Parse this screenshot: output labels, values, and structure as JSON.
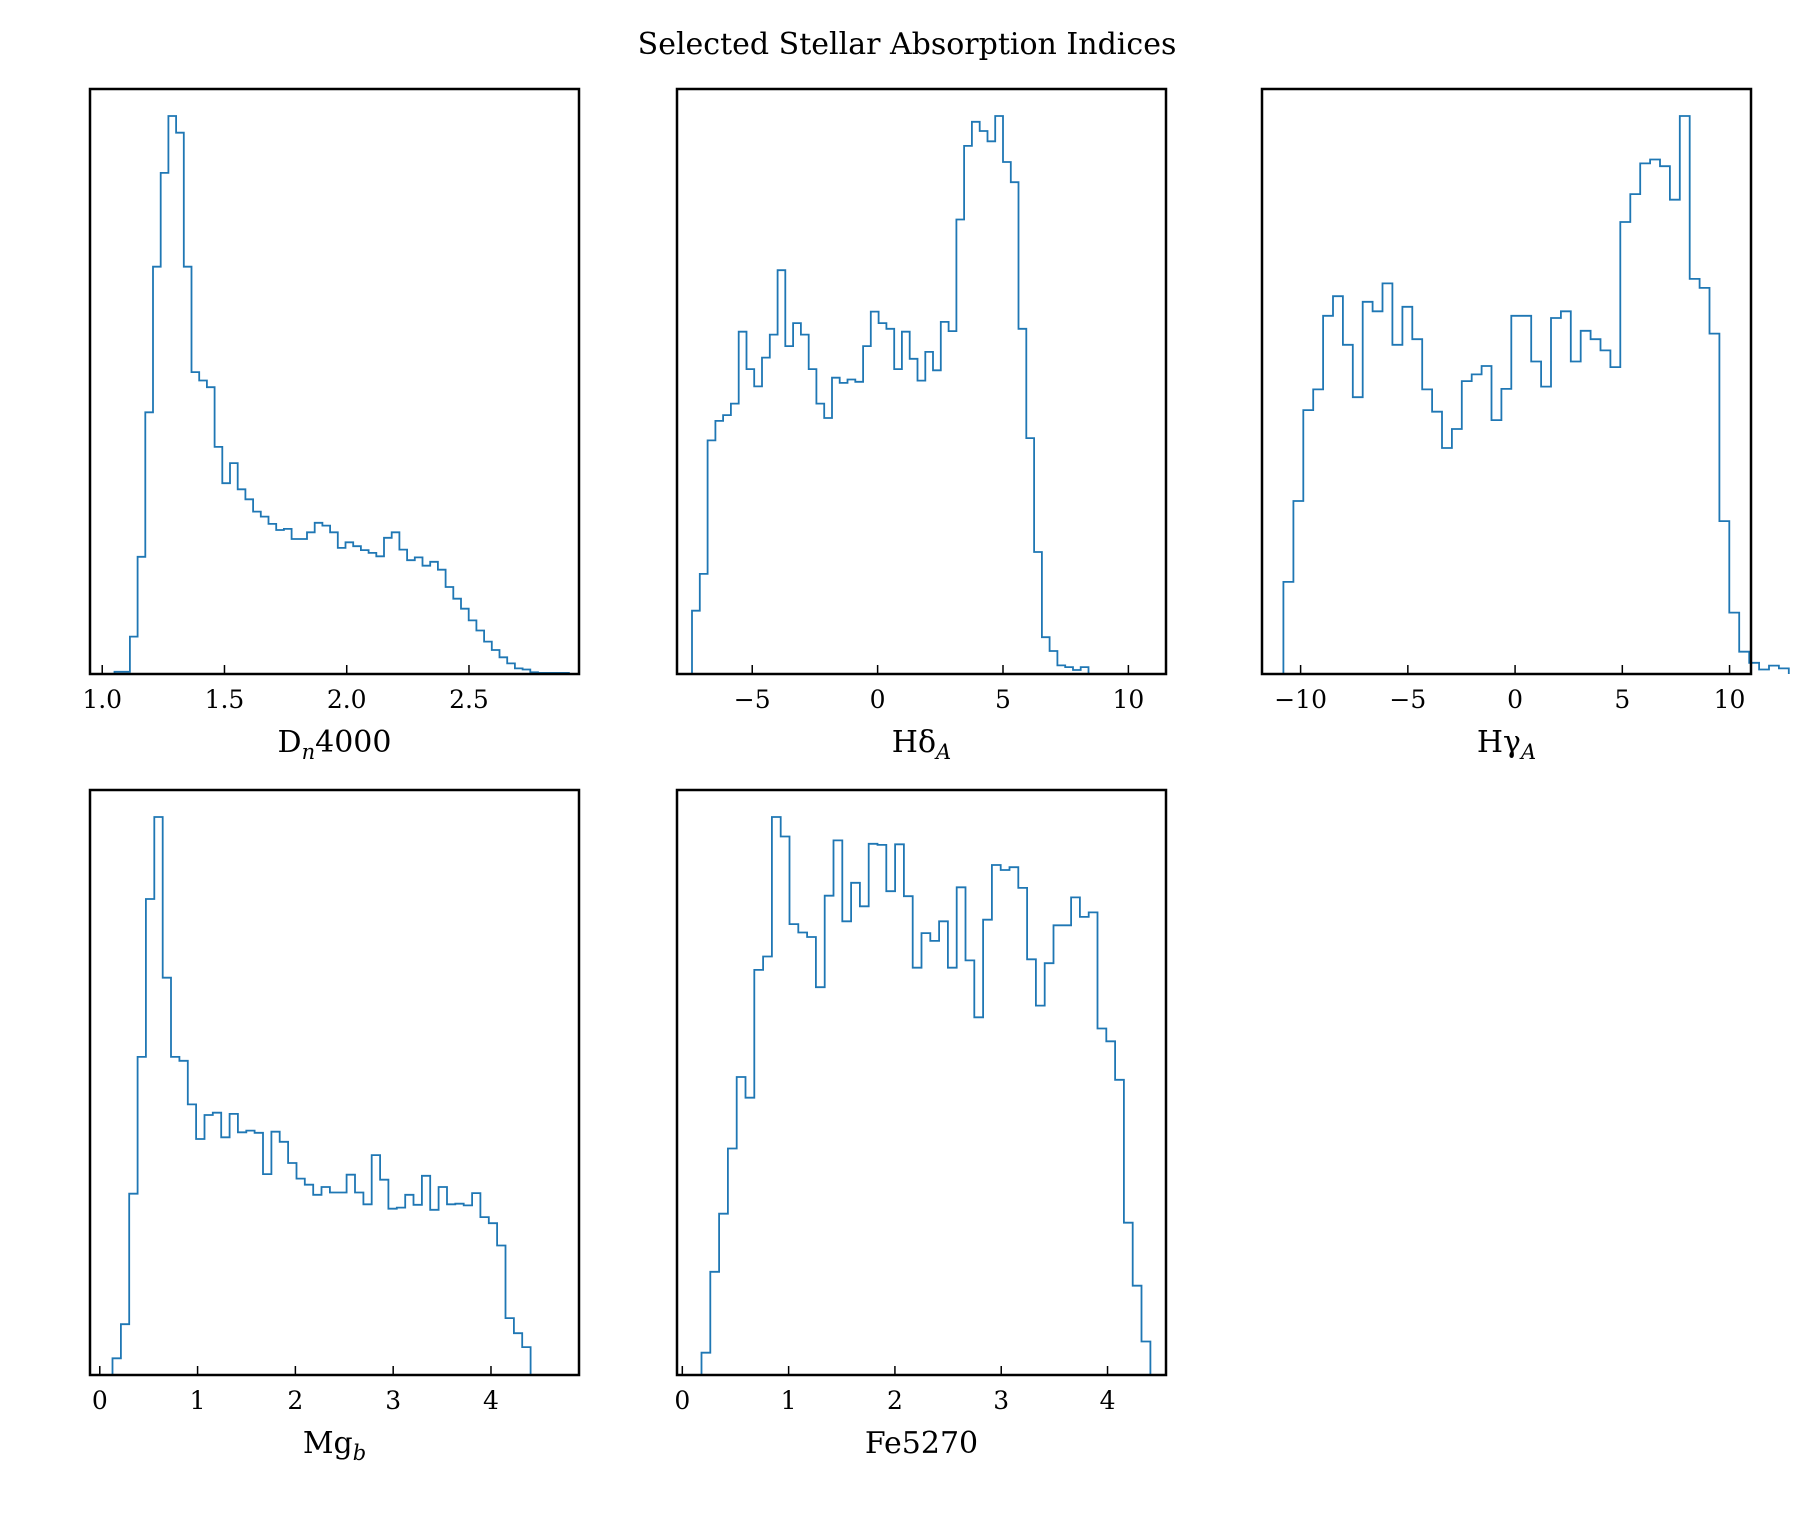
{
  "figure": {
    "title": "Selected Stellar Absorption Indices"
  },
  "colors": {
    "histogram": "#1f77b4",
    "frame": "#000000"
  },
  "chart_data": [
    {
      "type": "histogram",
      "id": "dn4000",
      "xlabel": "D",
      "xlabel_sub": "n",
      "xlabel_tail": "4000",
      "xlim": [
        0.95,
        2.95
      ],
      "xticks": [
        1.0,
        1.5,
        2.0,
        2.5
      ],
      "xtick_labels": [
        "1.0",
        "1.5",
        "2.0",
        "2.5"
      ],
      "bin_start": 1.05,
      "bin_width": 0.0315,
      "counts": [
        0.004,
        0.004,
        0.067,
        0.21,
        0.469,
        0.73,
        0.898,
        1.0,
        0.97,
        0.73,
        0.541,
        0.526,
        0.514,
        0.407,
        0.342,
        0.378,
        0.331,
        0.313,
        0.291,
        0.282,
        0.269,
        0.258,
        0.26,
        0.242,
        0.242,
        0.254,
        0.271,
        0.266,
        0.254,
        0.226,
        0.236,
        0.229,
        0.222,
        0.217,
        0.211,
        0.244,
        0.254,
        0.223,
        0.204,
        0.209,
        0.194,
        0.201,
        0.187,
        0.156,
        0.135,
        0.117,
        0.096,
        0.078,
        0.058,
        0.043,
        0.03,
        0.019,
        0.01,
        0.008,
        0.003,
        0.002,
        0.002,
        0.002,
        0.002
      ],
      "grid": false,
      "legend": "none"
    },
    {
      "type": "histogram",
      "id": "hdelta",
      "xlabel": "Hδ",
      "xlabel_sub": "A",
      "xlabel_tail": "",
      "xlim": [
        -8.0,
        11.5
      ],
      "xticks": [
        -5,
        0,
        5,
        10
      ],
      "xtick_labels": [
        "−5",
        "0",
        "5",
        "10"
      ],
      "bin_start": -7.4,
      "bin_width": 0.31,
      "counts": [
        0.11,
        0.174,
        0.406,
        0.44,
        0.45,
        0.47,
        0.595,
        0.53,
        0.5,
        0.55,
        0.59,
        0.702,
        0.57,
        0.61,
        0.59,
        0.53,
        0.47,
        0.445,
        0.515,
        0.506,
        0.512,
        0.508,
        0.57,
        0.63,
        0.61,
        0.6,
        0.53,
        0.595,
        0.548,
        0.51,
        0.56,
        0.528,
        0.612,
        0.596,
        0.79,
        0.918,
        0.96,
        0.944,
        0.926,
        0.97,
        0.89,
        0.855,
        0.6,
        0.41,
        0.212,
        0.064,
        0.04,
        0.015,
        0.012,
        0.007,
        0.012
      ],
      "grid": false,
      "legend": "none"
    },
    {
      "type": "histogram",
      "id": "hgamma",
      "xlabel": "Hγ",
      "xlabel_sub": "A",
      "xlabel_tail": "",
      "xlim": [
        -11.8,
        11.0
      ],
      "xticks": [
        -10,
        -5,
        0,
        5,
        10
      ],
      "xtick_labels": [
        "−10",
        "−5",
        "0",
        "5",
        "10"
      ],
      "bin_start": -10.8,
      "bin_width": 0.462,
      "counts": [
        0.165,
        0.31,
        0.473,
        0.51,
        0.642,
        0.677,
        0.59,
        0.496,
        0.667,
        0.65,
        0.7,
        0.59,
        0.658,
        0.6,
        0.51,
        0.47,
        0.405,
        0.439,
        0.525,
        0.537,
        0.552,
        0.455,
        0.511,
        0.642,
        0.642,
        0.56,
        0.515,
        0.638,
        0.65,
        0.56,
        0.615,
        0.6,
        0.58,
        0.55,
        0.81,
        0.86,
        0.915,
        0.922,
        0.91,
        0.85,
        1.0,
        0.708,
        0.692,
        0.61,
        0.274,
        0.11,
        0.04,
        0.02,
        0.008,
        0.015,
        0.01
      ],
      "grid": false,
      "legend": "none"
    },
    {
      "type": "histogram",
      "id": "mgb",
      "xlabel": "Mg",
      "xlabel_sub": "b",
      "xlabel_tail": "",
      "xlim": [
        -0.1,
        4.9
      ],
      "xticks": [
        0,
        1,
        2,
        3,
        4
      ],
      "xtick_labels": [
        "0",
        "1",
        "2",
        "3",
        "4"
      ],
      "bin_start": 0.13,
      "bin_width": 0.0855,
      "counts": [
        0.03,
        0.091,
        0.325,
        0.57,
        0.853,
        1.0,
        0.712,
        0.57,
        0.563,
        0.485,
        0.423,
        0.466,
        0.47,
        0.426,
        0.468,
        0.435,
        0.438,
        0.434,
        0.36,
        0.436,
        0.418,
        0.38,
        0.352,
        0.341,
        0.323,
        0.337,
        0.327,
        0.327,
        0.359,
        0.327,
        0.306,
        0.394,
        0.35,
        0.298,
        0.3,
        0.323,
        0.305,
        0.357,
        0.296,
        0.337,
        0.306,
        0.307,
        0.304,
        0.326,
        0.283,
        0.272,
        0.232,
        0.102,
        0.075,
        0.05
      ],
      "grid": false,
      "legend": "none"
    },
    {
      "type": "histogram",
      "id": "fe5270",
      "xlabel": "Fe5270",
      "xlabel_sub": "",
      "xlabel_tail": "",
      "xlim": [
        -0.05,
        4.55
      ],
      "xticks": [
        0,
        1,
        2,
        3,
        4
      ],
      "xtick_labels": [
        "0",
        "1",
        "2",
        "3",
        "4"
      ],
      "bin_start": 0.18,
      "bin_width": 0.0828,
      "counts": [
        0.04,
        0.185,
        0.289,
        0.406,
        0.534,
        0.497,
        0.726,
        0.75,
        1.0,
        0.965,
        0.808,
        0.793,
        0.785,
        0.695,
        0.859,
        0.958,
        0.813,
        0.882,
        0.84,
        0.952,
        0.95,
        0.867,
        0.951,
        0.858,
        0.73,
        0.792,
        0.778,
        0.813,
        0.73,
        0.874,
        0.743,
        0.641,
        0.816,
        0.914,
        0.905,
        0.91,
        0.873,
        0.745,
        0.662,
        0.738,
        0.806,
        0.806,
        0.856,
        0.821,
        0.829,
        0.621,
        0.598,
        0.529,
        0.273,
        0.16,
        0.06
      ]
    }
  ]
}
